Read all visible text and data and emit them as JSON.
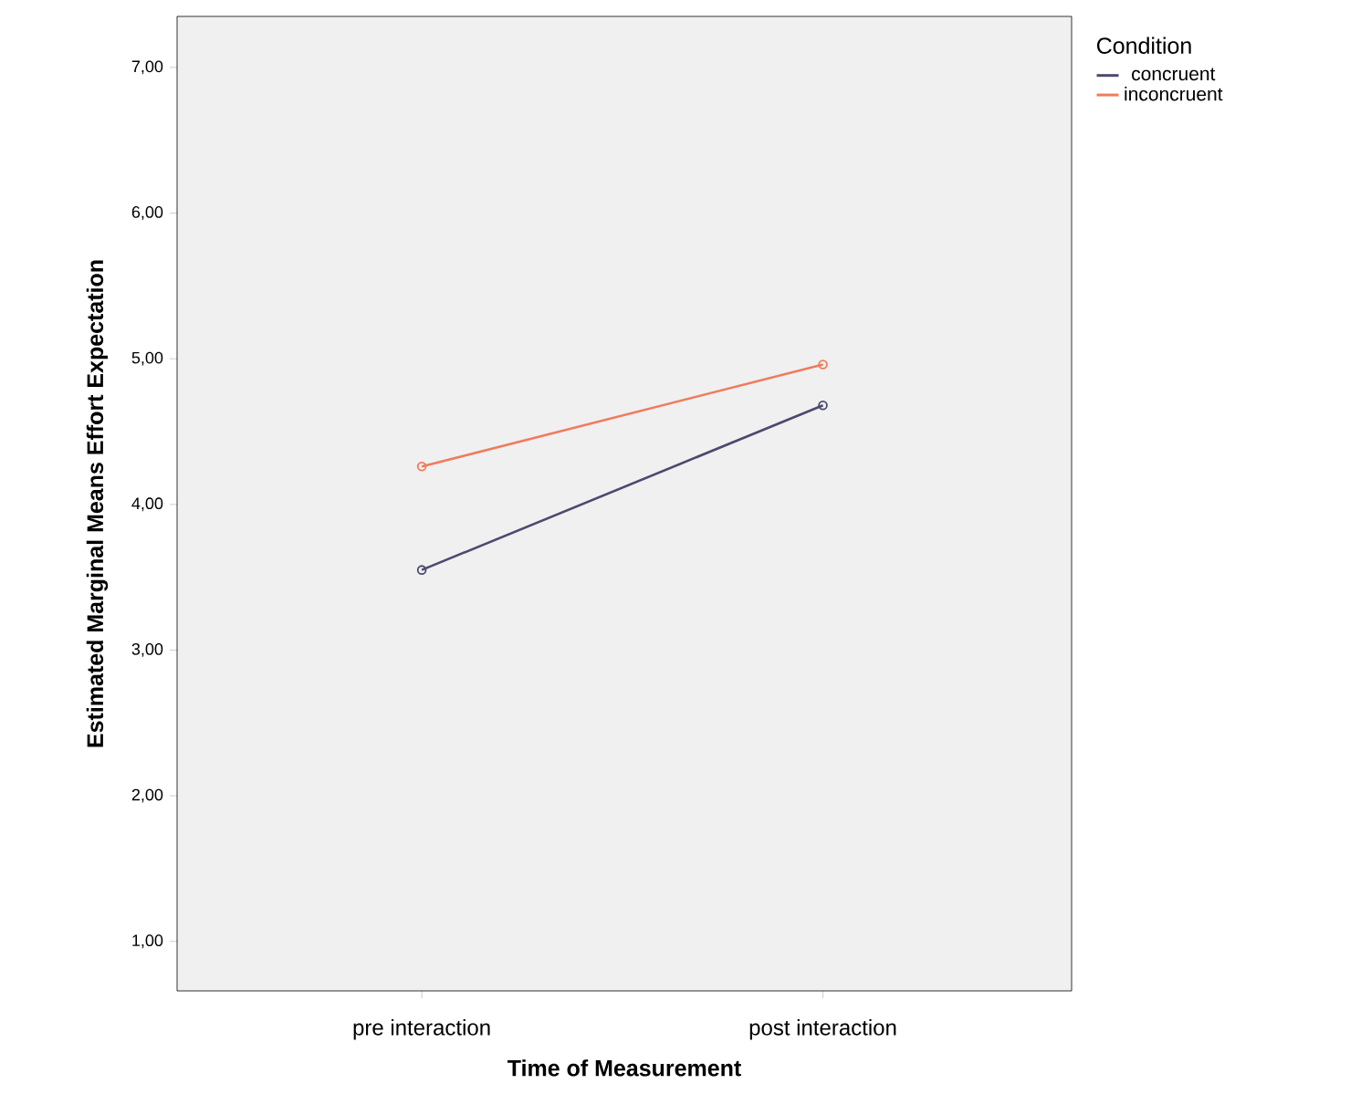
{
  "chart_data": {
    "type": "line",
    "xlabel": "Time of Measurement",
    "ylabel": "Estimated Marginal Means Effort Expectation",
    "legend_title": "Condition",
    "categories": [
      "pre interaction",
      "post interaction"
    ],
    "series": [
      {
        "name": "concruent",
        "color": "#4b4a6e",
        "values": [
          3.55,
          4.68
        ]
      },
      {
        "name": "inconcruent",
        "color": "#f07b5c",
        "values": [
          4.26,
          4.96
        ]
      }
    ],
    "ylim": [
      0.66,
      7.35
    ],
    "yticks": [
      {
        "value": 1,
        "label": "1,00"
      },
      {
        "value": 2,
        "label": "2,00"
      },
      {
        "value": 3,
        "label": "3,00"
      },
      {
        "value": 4,
        "label": "4,00"
      },
      {
        "value": 5,
        "label": "5,00"
      },
      {
        "value": 6,
        "label": "6,00"
      },
      {
        "value": 7,
        "label": "7,00"
      }
    ],
    "marker": "circle",
    "line_style": "solid",
    "legend": "top right",
    "grid": false
  }
}
